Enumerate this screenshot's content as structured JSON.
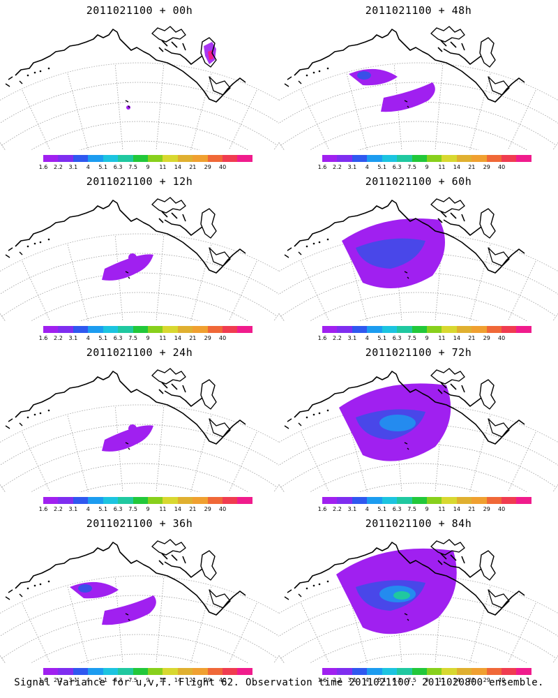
{
  "panels": [
    {
      "title": "2011021100 + 00h",
      "lead": "00h",
      "signal_level": 0
    },
    {
      "title": "2011021100 + 48h",
      "lead": "48h",
      "signal_level": 2
    },
    {
      "title": "2011021100 + 12h",
      "lead": "12h",
      "signal_level": 1
    },
    {
      "title": "2011021100 + 60h",
      "lead": "60h",
      "signal_level": 3
    },
    {
      "title": "2011021100 + 24h",
      "lead": "24h",
      "signal_level": 1
    },
    {
      "title": "2011021100 + 72h",
      "lead": "72h",
      "signal_level": 4
    },
    {
      "title": "2011021100 + 36h",
      "lead": "36h",
      "signal_level": 2
    },
    {
      "title": "2011021100 + 84h",
      "lead": "84h",
      "signal_level": 5
    }
  ],
  "colorbar": {
    "labels": [
      "1.6",
      "2.2",
      "3.1",
      "4",
      "5.1",
      "6.3",
      "7.5",
      "9",
      "11",
      "14",
      "21",
      "29",
      "40"
    ],
    "colors": [
      "#a020f0",
      "#7f2ef0",
      "#2f58f0",
      "#1c9cf0",
      "#1cc4e0",
      "#20c8a0",
      "#22c83a",
      "#88d01c",
      "#d8d830",
      "#e0b030",
      "#f0a030",
      "#f06838",
      "#f03c50",
      "#f01c8c"
    ]
  },
  "footer": "Signal Variance for u,v,T. Flight 62. Observation time 2011021100. 2011020800 ensemble."
}
